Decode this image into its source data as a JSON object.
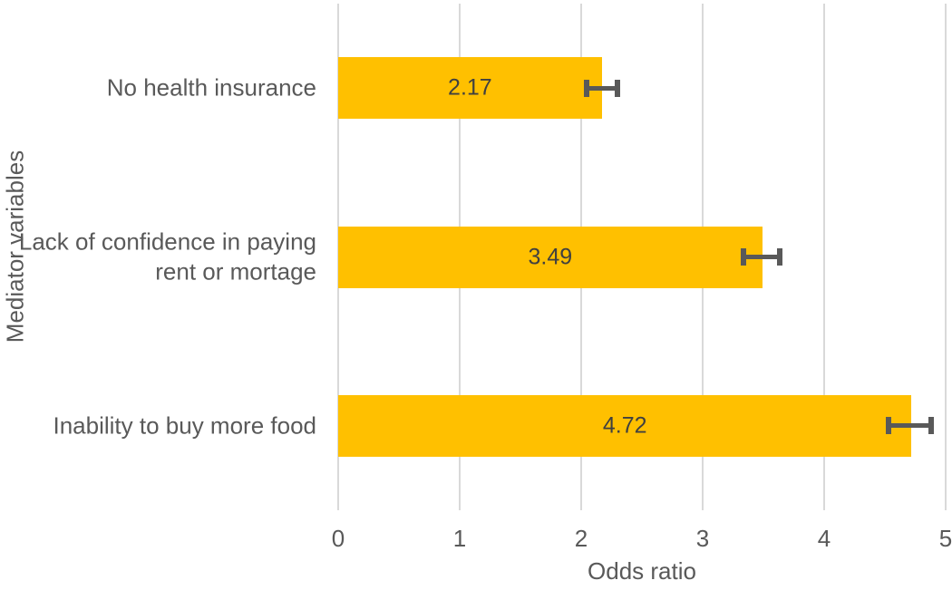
{
  "chart_data": {
    "type": "bar",
    "orientation": "horizontal",
    "title": "",
    "xlabel": "Odds ratio",
    "ylabel": "Mediator variables",
    "categories": [
      "No health insurance",
      "Lack of confidence in paying rent or mortage",
      "Inability to buy more food"
    ],
    "categories_display": [
      "No health insurance",
      "Lack of confidence in paying\nrent or mortage",
      "Inability to buy more food"
    ],
    "values": [
      2.17,
      3.49,
      4.72
    ],
    "data_labels": [
      "2.17",
      "3.49",
      "4.72"
    ],
    "error_bars": [
      {
        "low": 2.02,
        "high": 2.32
      },
      {
        "low": 3.31,
        "high": 3.66
      },
      {
        "low": 4.51,
        "high": 4.9
      }
    ],
    "xlim": [
      0,
      5
    ],
    "x_ticks": [
      0,
      1,
      2,
      3,
      4,
      5
    ],
    "grid": "vertical-gridlines-on",
    "legend": "none",
    "colors": {
      "bar_fill": "#FFC000",
      "error_bar": "#595959",
      "gridline": "#D9D9D9",
      "axis_text": "#595959",
      "data_label_text": "#404040",
      "background": "#FFFFFF"
    }
  }
}
